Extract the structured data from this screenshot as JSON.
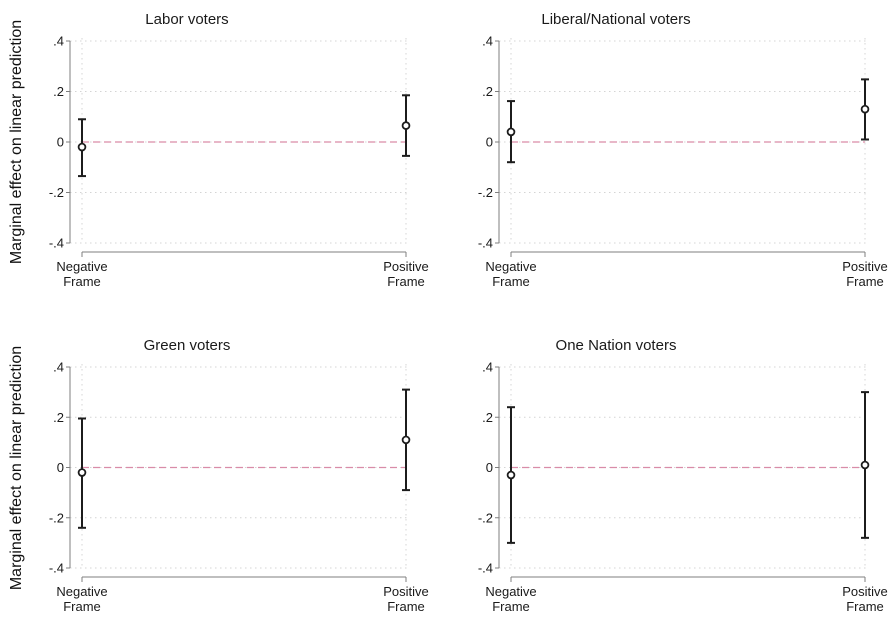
{
  "y_axis_label": "Marginal effect on linear prediction",
  "chart_data": [
    {
      "type": "scatter",
      "title": "Labor voters",
      "categories": [
        "Negative\nFrame",
        "Positive\nFrame"
      ],
      "values": [
        -0.02,
        0.065
      ],
      "ci_lower": [
        -0.135,
        -0.055
      ],
      "ci_upper": [
        0.09,
        0.185
      ],
      "ylim": [
        -0.4,
        0.4
      ],
      "yticks": [
        0.4,
        0.2,
        0,
        -0.2,
        -0.4
      ],
      "ytick_labels": [
        ".4",
        ".2",
        "0",
        "-.2",
        "-.4"
      ],
      "reference_line": 0,
      "grid": true
    },
    {
      "type": "scatter",
      "title": "Liberal/National voters",
      "categories": [
        "Negative\nFrame",
        "Positive\nFrame"
      ],
      "values": [
        0.04,
        0.13
      ],
      "ci_lower": [
        -0.08,
        0.01
      ],
      "ci_upper": [
        0.162,
        0.248
      ],
      "ylim": [
        -0.4,
        0.4
      ],
      "yticks": [
        0.4,
        0.2,
        0,
        -0.2,
        -0.4
      ],
      "ytick_labels": [
        ".4",
        ".2",
        "0",
        "-.2",
        "-.4"
      ],
      "reference_line": 0,
      "grid": true
    },
    {
      "type": "scatter",
      "title": "Green voters",
      "categories": [
        "Negative\nFrame",
        "Positive\nFrame"
      ],
      "values": [
        -0.02,
        0.11
      ],
      "ci_lower": [
        -0.24,
        -0.09
      ],
      "ci_upper": [
        0.195,
        0.31
      ],
      "ylim": [
        -0.4,
        0.4
      ],
      "yticks": [
        0.4,
        0.2,
        0,
        -0.2,
        -0.4
      ],
      "ytick_labels": [
        ".4",
        ".2",
        "0",
        "-.2",
        "-.4"
      ],
      "reference_line": 0,
      "grid": true
    },
    {
      "type": "scatter",
      "title": "One Nation voters",
      "categories": [
        "Negative\nFrame",
        "Positive\nFrame"
      ],
      "values": [
        -0.03,
        0.01
      ],
      "ci_lower": [
        -0.3,
        -0.28
      ],
      "ci_upper": [
        0.24,
        0.3
      ],
      "ylim": [
        -0.4,
        0.4
      ],
      "yticks": [
        0.4,
        0.2,
        0,
        -0.2,
        -0.4
      ],
      "ytick_labels": [
        ".4",
        ".2",
        "0",
        "-.2",
        "-.4"
      ],
      "reference_line": 0,
      "grid": true
    }
  ]
}
